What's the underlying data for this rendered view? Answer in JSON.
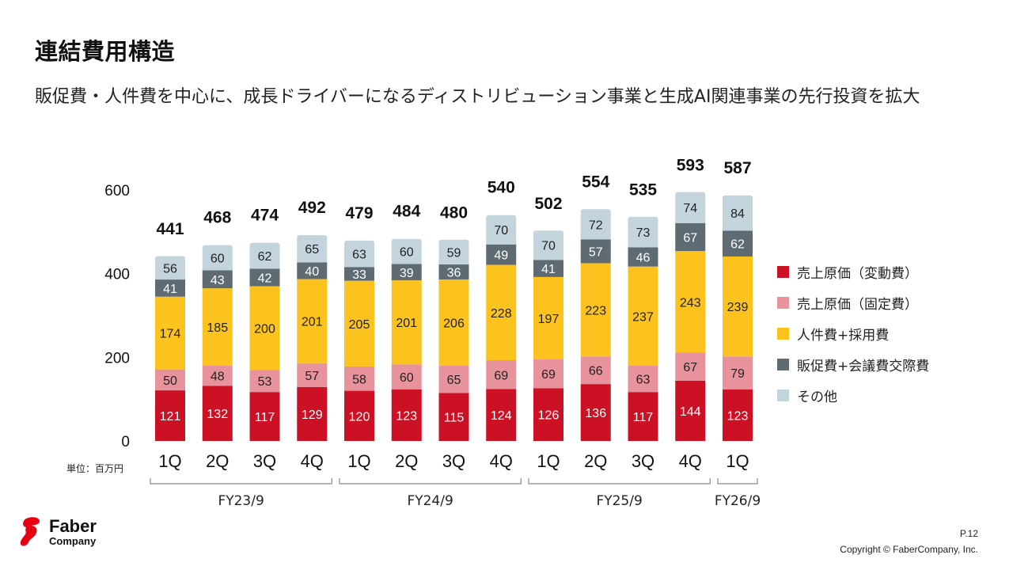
{
  "page": {
    "title": "連結費用構造",
    "subtitle": "販促費・人件費を中心に、成長ドライバーになるディストリビューション事業と生成AI関連事業の先行投資を拡大",
    "unit_label": "単位：百万円",
    "page_number": "P.12",
    "copyright": "Copyright © FaberCompany, Inc.",
    "logo": {
      "name": "Faber",
      "sub": "Company",
      "icon": "faber-logo-icon",
      "color": "#e60012"
    }
  },
  "chart_data": {
    "type": "bar",
    "stacked": true,
    "title": "連結費用構造",
    "xlabel": "",
    "ylabel": "",
    "unit": "単位：百万円",
    "ylim": [
      0,
      600
    ],
    "yticks": [
      0,
      200,
      400,
      600
    ],
    "grid": false,
    "legend_position": "right",
    "categories": [
      "1Q",
      "2Q",
      "3Q",
      "4Q",
      "1Q",
      "2Q",
      "3Q",
      "4Q",
      "1Q",
      "2Q",
      "3Q",
      "4Q",
      "1Q"
    ],
    "groups": [
      {
        "label": "FY23/9",
        "start": 0,
        "end": 3
      },
      {
        "label": "FY24/9",
        "start": 4,
        "end": 7
      },
      {
        "label": "FY25/9",
        "start": 8,
        "end": 11
      },
      {
        "label": "FY26/9",
        "start": 12,
        "end": 12
      }
    ],
    "series": [
      {
        "name": "売上原価（変動費）",
        "color": "#cc1125",
        "label_color": "#ffffff",
        "values": [
          121,
          132,
          117,
          129,
          120,
          123,
          115,
          124,
          126,
          136,
          117,
          144,
          123
        ]
      },
      {
        "name": "売上原価（固定費）",
        "color": "#e8939c",
        "label_color": "#222222",
        "values": [
          50,
          48,
          53,
          57,
          58,
          60,
          65,
          69,
          69,
          66,
          63,
          67,
          79
        ]
      },
      {
        "name": "人件費+採用費",
        "color": "#fcc31f",
        "label_color": "#222222",
        "values": [
          174,
          185,
          200,
          201,
          205,
          201,
          206,
          228,
          197,
          223,
          237,
          243,
          239
        ]
      },
      {
        "name": "販促費+会議費交際費",
        "color": "#5f6b72",
        "label_color": "#ffffff",
        "values": [
          41,
          43,
          42,
          40,
          33,
          39,
          36,
          49,
          41,
          57,
          46,
          67,
          62
        ]
      },
      {
        "name": "その他",
        "color": "#c3d4dc",
        "label_color": "#222222",
        "values": [
          56,
          60,
          62,
          65,
          63,
          60,
          59,
          70,
          70,
          72,
          73,
          74,
          84
        ]
      }
    ],
    "totals": [
      441,
      468,
      474,
      492,
      479,
      484,
      480,
      540,
      502,
      554,
      535,
      593,
      587
    ]
  }
}
